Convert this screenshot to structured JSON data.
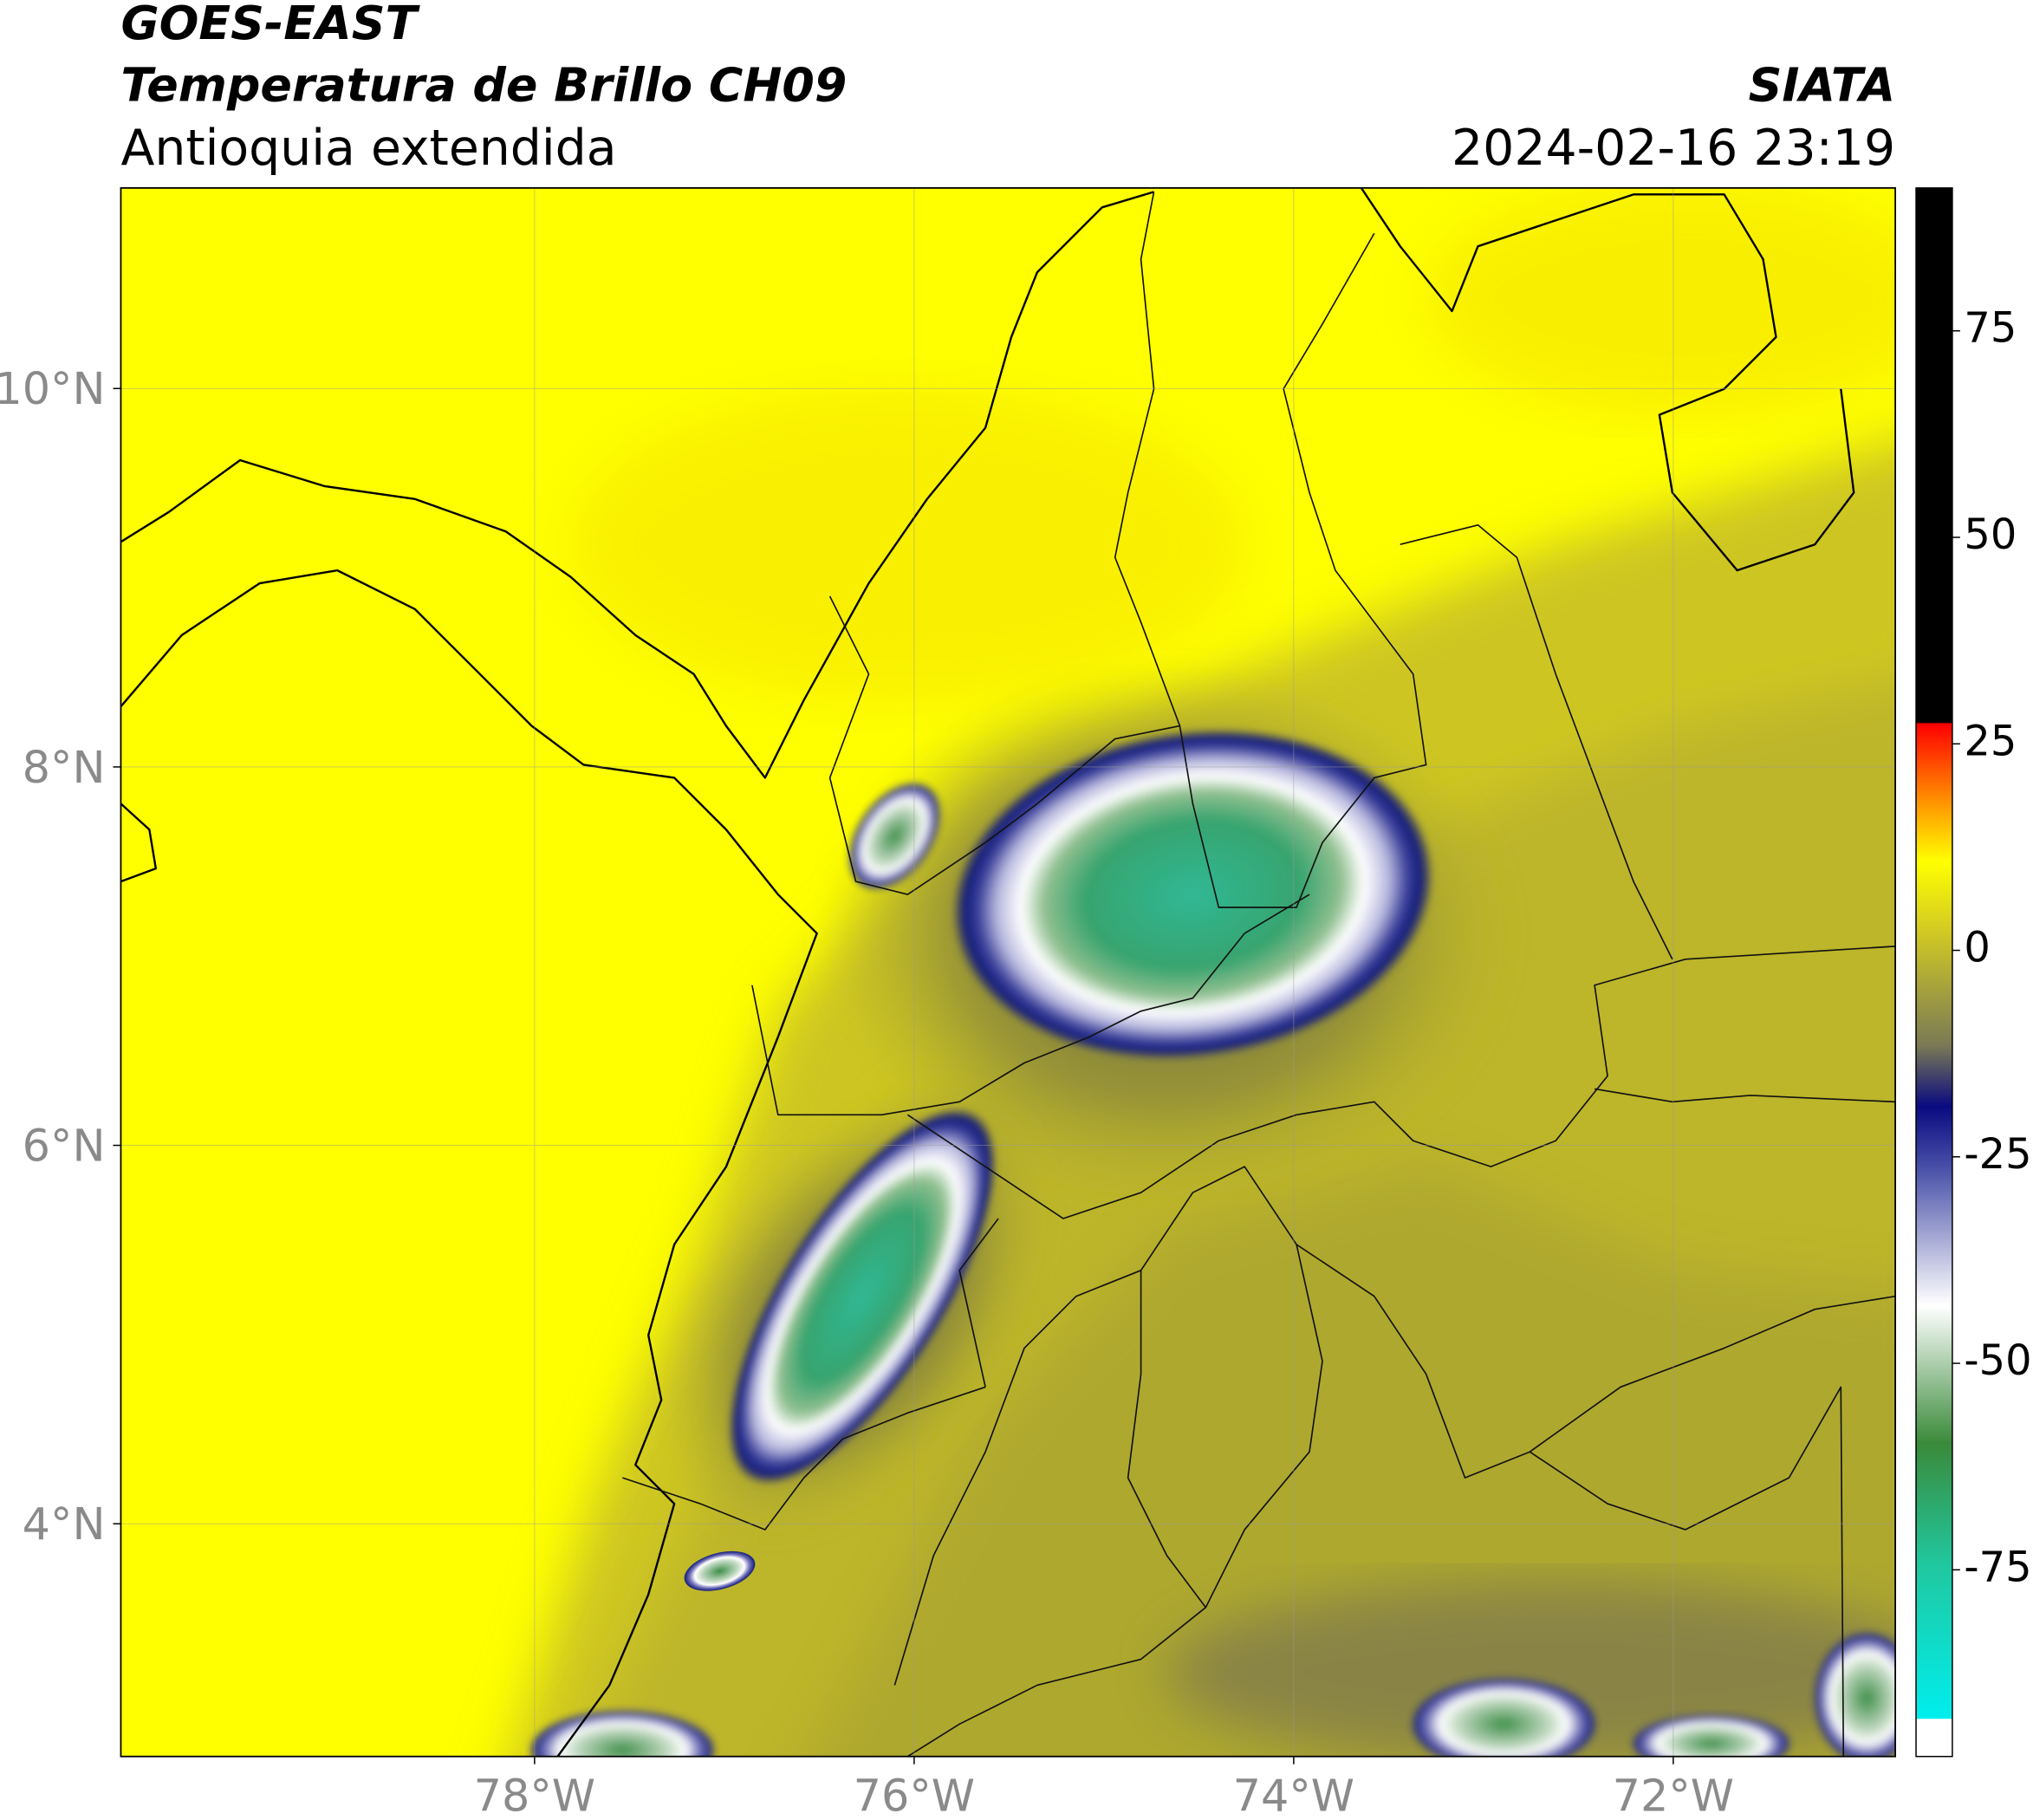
{
  "header": {
    "satellite": "GOES-EAST",
    "product": "Temperatura de Brillo CH09",
    "region": "Antioquia extendida",
    "brand": "SIATA",
    "datetime": "2024-02-16 23:19"
  },
  "map": {
    "xlim": [
      -80.18,
      -70.83
    ],
    "ylim": [
      2.77,
      11.06
    ],
    "xticks": [
      {
        "value": -78,
        "label": "78°W"
      },
      {
        "value": -76,
        "label": "76°W"
      },
      {
        "value": -74,
        "label": "74°W"
      },
      {
        "value": -72,
        "label": "72°W"
      }
    ],
    "yticks": [
      {
        "value": 4,
        "label": "4°N"
      },
      {
        "value": 6,
        "label": "6°N"
      },
      {
        "value": 8,
        "label": "8°N"
      },
      {
        "value": 10,
        "label": "10°N"
      }
    ],
    "grid": true
  },
  "colorbar": {
    "lim": [
      -97.6,
      92.3
    ],
    "ticks": [
      75,
      50,
      25,
      0,
      -25,
      -50,
      -75
    ]
  }
}
